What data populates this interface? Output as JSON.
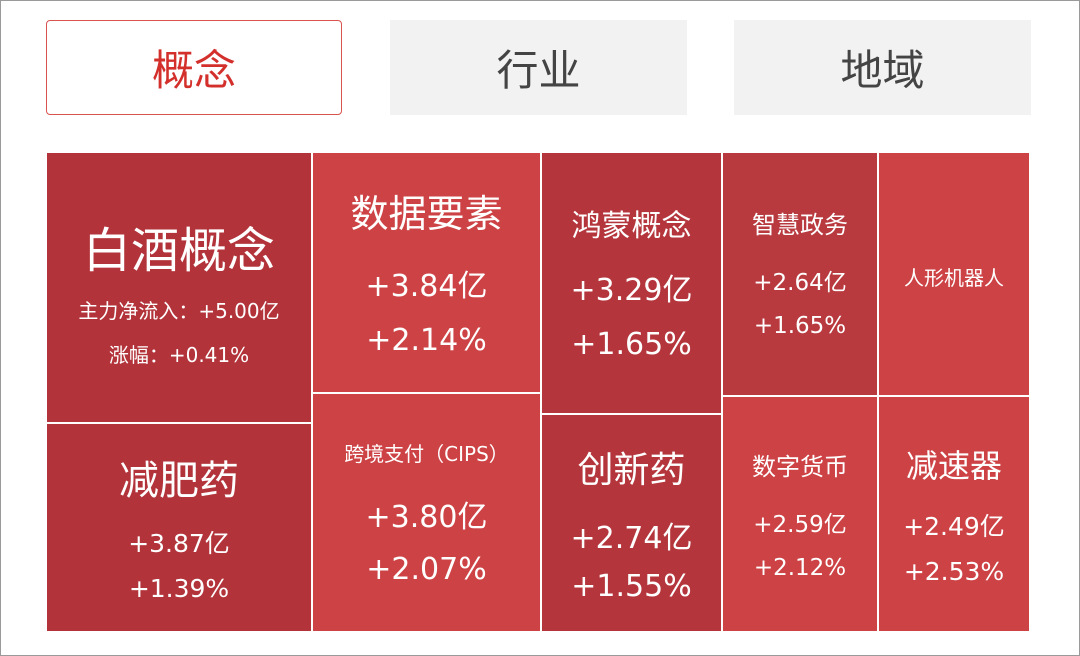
{
  "tabs": [
    {
      "label": "概念",
      "active": true
    },
    {
      "label": "行业",
      "active": false
    },
    {
      "label": "地域",
      "active": false
    }
  ],
  "treemap": [
    {
      "name": "白酒概念",
      "flow_label": "主力净流入：+5.00亿",
      "change_label": "涨幅：+0.41%"
    },
    {
      "name": "数据要素",
      "flow": "+3.84亿",
      "change": "+2.14%"
    },
    {
      "name": "鸿蒙概念",
      "flow": "+3.29亿",
      "change": "+1.65%"
    },
    {
      "name": "智慧政务",
      "flow": "+2.64亿",
      "change": "+1.65%"
    },
    {
      "name": "人形机器人"
    },
    {
      "name": "减肥药",
      "flow": "+3.87亿",
      "change": "+1.39%"
    },
    {
      "name": "跨境支付（CIPS）",
      "flow": "+3.80亿",
      "change": "+2.07%"
    },
    {
      "name": "创新药",
      "flow": "+2.74亿",
      "change": "+1.55%"
    },
    {
      "name": "数字货币",
      "flow": "+2.59亿",
      "change": "+2.12%"
    },
    {
      "name": "减速器",
      "flow": "+2.49亿",
      "change": "+2.53%"
    }
  ],
  "colors": {
    "accent": "#d3302c",
    "tile_dark": "#b2333a",
    "tile_mid": "#c23b40",
    "tile_light": "#cd4245",
    "tab_inactive_bg": "#f2f2f2"
  }
}
